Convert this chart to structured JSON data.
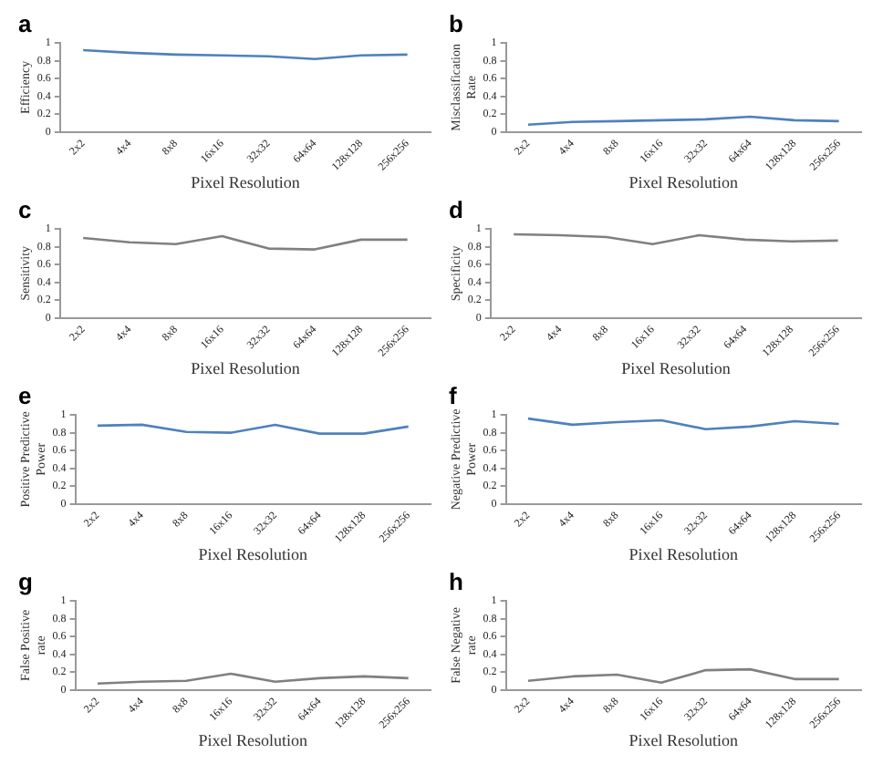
{
  "chart_data": [
    {
      "type": "line",
      "title": "a",
      "xlabel": "Pixel Resolution",
      "ylabel": "Efficiency",
      "categories": [
        "2x2",
        "4x4",
        "8x8",
        "16x16",
        "32x32",
        "64x64",
        "128x128",
        "256x256"
      ],
      "series": [
        {
          "color": "#4f81bd",
          "values": [
            0.92,
            0.89,
            0.87,
            0.86,
            0.85,
            0.82,
            0.86,
            0.87
          ]
        }
      ],
      "ylim": [
        0,
        1
      ],
      "yticks": [
        0,
        0.2,
        0.4,
        0.6,
        0.8,
        1
      ]
    },
    {
      "type": "line",
      "title": "b",
      "xlabel": "Pixel Resolution",
      "ylabel": "Misclassification Rate",
      "categories": [
        "2x2",
        "4x4",
        "8x8",
        "16x16",
        "32x32",
        "64x64",
        "128x128",
        "256x256"
      ],
      "series": [
        {
          "color": "#4f81bd",
          "values": [
            0.08,
            0.11,
            0.12,
            0.13,
            0.14,
            0.17,
            0.13,
            0.12
          ]
        }
      ],
      "ylim": [
        0,
        1
      ],
      "yticks": [
        0,
        0.2,
        0.4,
        0.6,
        0.8,
        1
      ]
    },
    {
      "type": "line",
      "title": "c",
      "xlabel": "Pixel Resolution",
      "ylabel": "Sensitivity",
      "categories": [
        "2x2",
        "4x4",
        "8x8",
        "16x16",
        "32x32",
        "64x64",
        "128x128",
        "256x256"
      ],
      "series": [
        {
          "color": "#808080",
          "values": [
            0.9,
            0.85,
            0.83,
            0.92,
            0.78,
            0.77,
            0.88,
            0.88
          ]
        }
      ],
      "ylim": [
        0,
        1
      ],
      "yticks": [
        0,
        0.2,
        0.4,
        0.6,
        0.8,
        1
      ]
    },
    {
      "type": "line",
      "title": "d",
      "xlabel": "Pixel Resolution",
      "ylabel": "Specificity",
      "categories": [
        "2x2",
        "4x4",
        "8x8",
        "16x16",
        "32x32",
        "64x64",
        "128x128",
        "256x256"
      ],
      "series": [
        {
          "color": "#808080",
          "values": [
            0.94,
            0.93,
            0.91,
            0.83,
            0.93,
            0.88,
            0.86,
            0.87
          ]
        }
      ],
      "ylim": [
        0,
        1
      ],
      "yticks": [
        0,
        0.2,
        0.4,
        0.6,
        0.8,
        1
      ]
    },
    {
      "type": "line",
      "title": "e",
      "xlabel": "Pixel Resolution",
      "ylabel": "Positive Predictive Power",
      "categories": [
        "2x2",
        "4x4",
        "8x8",
        "16x16",
        "32x32",
        "64x64",
        "128x128",
        "256x256"
      ],
      "series": [
        {
          "color": "#4f81bd",
          "values": [
            0.88,
            0.89,
            0.81,
            0.8,
            0.89,
            0.79,
            0.79,
            0.87
          ]
        }
      ],
      "ylim": [
        0,
        1
      ],
      "yticks": [
        0,
        0.2,
        0.4,
        0.6,
        0.8,
        1
      ]
    },
    {
      "type": "line",
      "title": "f",
      "xlabel": "Pixel Resolution",
      "ylabel": "Negative Predictive Power",
      "categories": [
        "2x2",
        "4x4",
        "8x8",
        "16x16",
        "32x32",
        "64x64",
        "128x128",
        "256x256"
      ],
      "series": [
        {
          "color": "#4f81bd",
          "values": [
            0.96,
            0.89,
            0.92,
            0.94,
            0.84,
            0.87,
            0.93,
            0.9
          ]
        }
      ],
      "ylim": [
        0,
        1
      ],
      "yticks": [
        0,
        0.2,
        0.4,
        0.6,
        0.8,
        1
      ]
    },
    {
      "type": "line",
      "title": "g",
      "xlabel": "Pixel Resolution",
      "ylabel": "False Positive rate",
      "categories": [
        "2x2",
        "4x4",
        "8x8",
        "16x16",
        "32x32",
        "64x64",
        "128x128",
        "256x256"
      ],
      "series": [
        {
          "color": "#808080",
          "values": [
            0.07,
            0.09,
            0.1,
            0.18,
            0.09,
            0.13,
            0.15,
            0.13
          ]
        }
      ],
      "ylim": [
        0,
        1
      ],
      "yticks": [
        0,
        0.2,
        0.4,
        0.6,
        0.8,
        1
      ]
    },
    {
      "type": "line",
      "title": "h",
      "xlabel": "Pixel Resolution",
      "ylabel": "False Negative rate",
      "categories": [
        "2x2",
        "4x4",
        "8x8",
        "16x16",
        "32x32",
        "64x64",
        "128x128",
        "256x256"
      ],
      "series": [
        {
          "color": "#808080",
          "values": [
            0.1,
            0.15,
            0.17,
            0.08,
            0.22,
            0.23,
            0.12,
            0.12
          ]
        }
      ],
      "ylim": [
        0,
        1
      ],
      "yticks": [
        0,
        0.2,
        0.4,
        0.6,
        0.8,
        1
      ]
    }
  ]
}
